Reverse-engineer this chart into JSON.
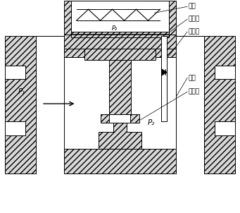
{
  "labels": {
    "spring": "弹簧",
    "diaphragm": "感压膜",
    "pilot_tube": "导压管",
    "valve_spool": "阀塞",
    "seal": "密封垫",
    "p1": "P₁",
    "p2": "P₂",
    "p_upper": "P₂"
  },
  "bg_color": "#ffffff",
  "label_fontsize": 6.5,
  "fig_width": 3.41,
  "fig_height": 3.02,
  "dpi": 100
}
